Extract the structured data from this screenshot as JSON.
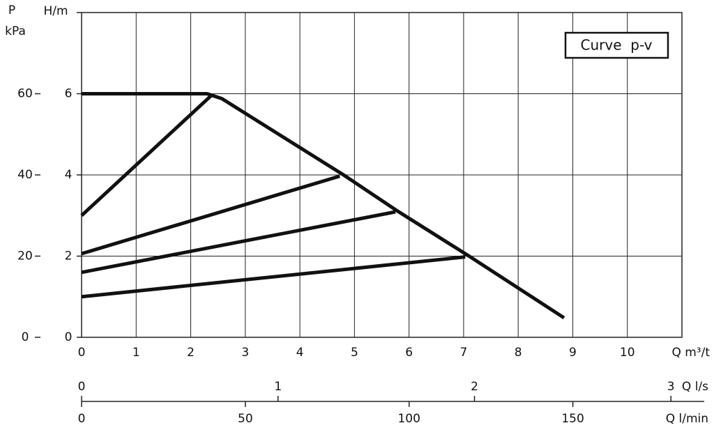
{
  "chart_data": {
    "type": "line",
    "annotation": "Curve  p-v",
    "x_label": "Q m³/t",
    "y_label": "H/m",
    "y2_label": "P",
    "y2_unit": "kPa",
    "xlim": [
      0,
      11
    ],
    "xticks": [
      0,
      1,
      2,
      3,
      4,
      5,
      6,
      7,
      8,
      9,
      10
    ],
    "ylim": [
      0,
      8
    ],
    "yticks": [
      0,
      2,
      4,
      6
    ],
    "y2lim": [
      0,
      80
    ],
    "y2ticks": [
      0,
      20,
      40,
      60
    ],
    "grid": true,
    "series": [
      {
        "color": "#111111",
        "x": [
          0,
          2.3,
          2.57,
          4.8,
          5.8,
          7.1,
          8.84
        ],
        "values": [
          6,
          6,
          5.88,
          4,
          3.1,
          2,
          0.48
        ]
      },
      {
        "color": "#111111",
        "x": [
          0,
          2.38
        ],
        "values": [
          3,
          5.96
        ]
      },
      {
        "color": "#111111",
        "x": [
          0,
          4.73
        ],
        "values": [
          2.06,
          3.97
        ]
      },
      {
        "color": "#111111",
        "x": [
          0,
          5.75
        ],
        "values": [
          1.6,
          3.09
        ]
      },
      {
        "color": "#111111",
        "x": [
          0,
          7.03
        ],
        "values": [
          1,
          1.98
        ]
      }
    ],
    "secondary_x_axes": [
      {
        "label": "Q l/s",
        "side": "top",
        "xlim": [
          0,
          3.056
        ],
        "xticks": [
          0,
          1,
          2,
          3
        ]
      },
      {
        "label": "Q l/min",
        "side": "bottom",
        "xlim": [
          0,
          183.3
        ],
        "xticks": [
          0,
          50,
          100,
          150
        ]
      }
    ]
  }
}
